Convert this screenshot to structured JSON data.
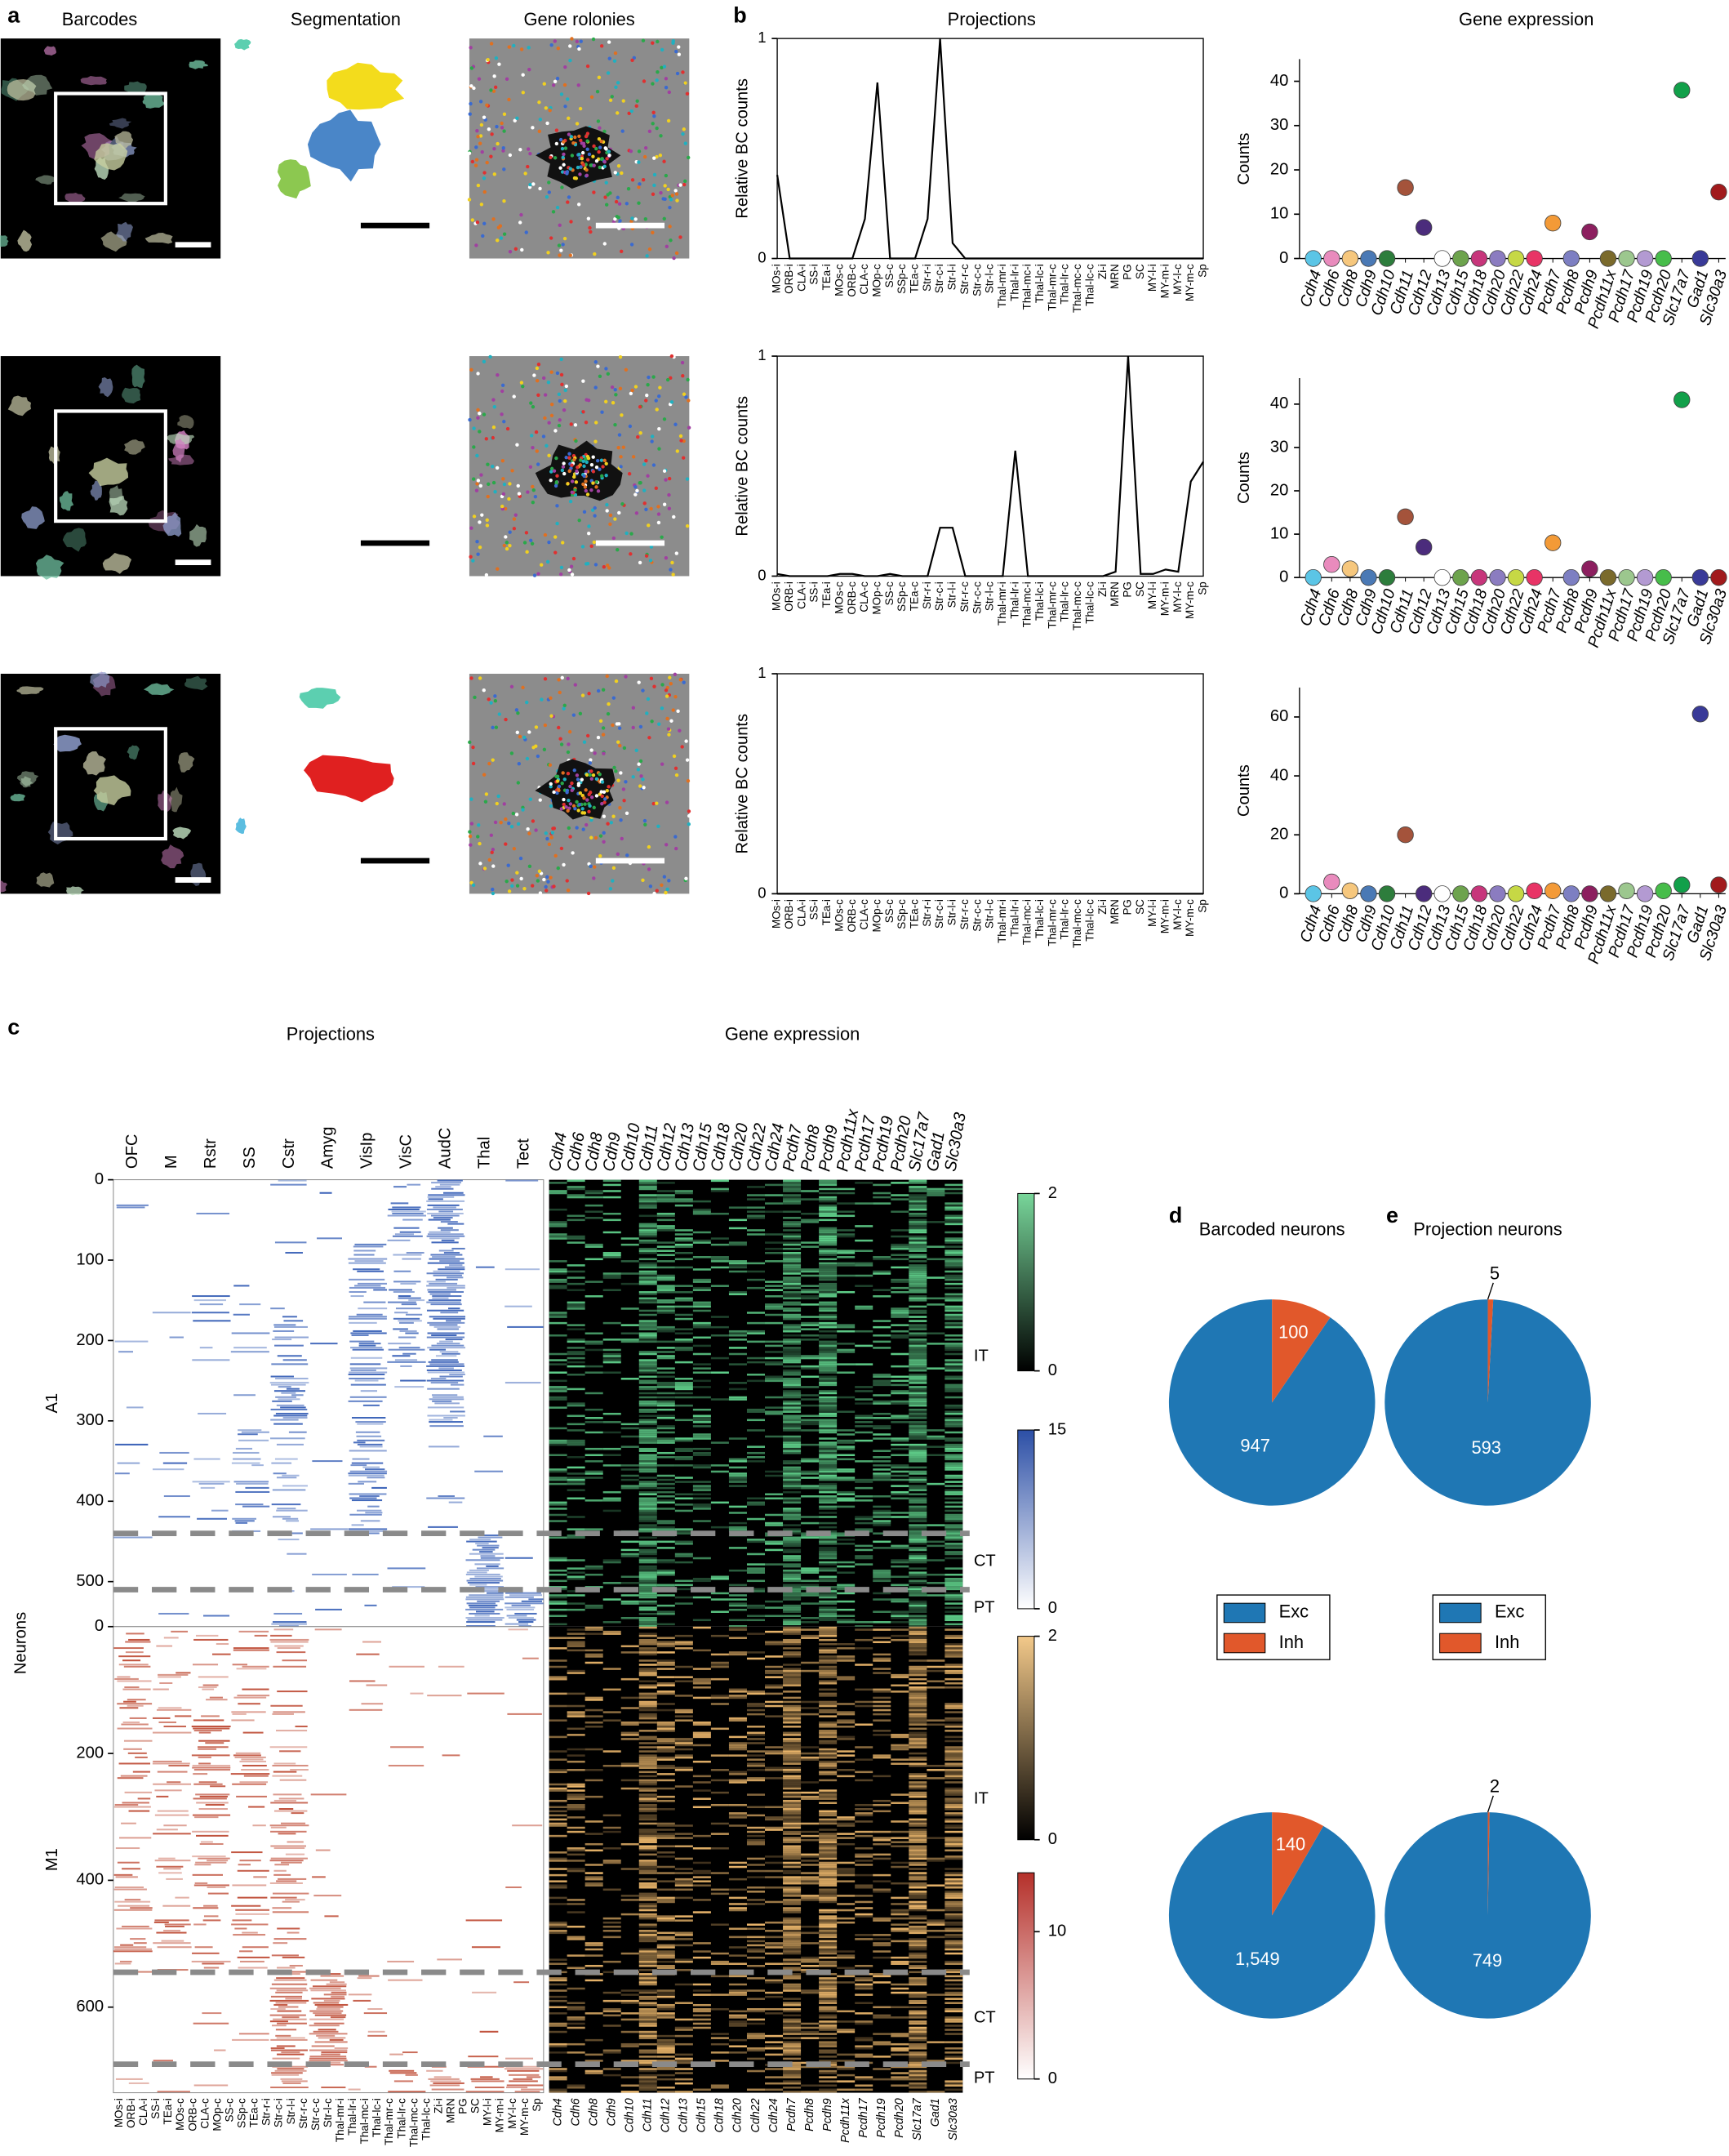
{
  "panel_labels": [
    "a",
    "b",
    "c",
    "d",
    "e"
  ],
  "panel_a": {
    "titles": [
      "Barcodes",
      "Segmentation",
      "Gene rolonies"
    ]
  },
  "projection_targets": [
    "MOs-i",
    "ORB-i",
    "CLA-i",
    "SS-i",
    "TEa-i",
    "MOs-c",
    "ORB-c",
    "CLA-c",
    "MOp-c",
    "SS-c",
    "SSp-c",
    "TEa-c",
    "Str-r-i",
    "Str-c-i",
    "Str-l-i",
    "Str-r-c",
    "Str-c-c",
    "Str-l-c",
    "Thal-mr-i",
    "Thal-lr-i",
    "Thal-mc-i",
    "Thal-lc-i",
    "Thal-mr-c",
    "Thal-lr-c",
    "Thal-mc-c",
    "Thal-lc-c",
    "Zi-i",
    "MRN",
    "PG",
    "SC",
    "MY-l-i",
    "MY-m-i",
    "MY-l-c",
    "MY-m-c",
    "Sp"
  ],
  "genes": [
    "Cdh4",
    "Cdh6",
    "Cdh8",
    "Cdh9",
    "Cdh10",
    "Cdh11",
    "Cdh12",
    "Cdh13",
    "Cdh15",
    "Cdh18",
    "Cdh20",
    "Cdh22",
    "Cdh24",
    "Pcdh7",
    "Pcdh8",
    "Pcdh9",
    "Pcdh11x",
    "Pcdh17",
    "Pcdh19",
    "Pcdh20",
    "Slc17a7",
    "Gad1",
    "Slc30a3"
  ],
  "gene_colors": [
    "#5bc5e6",
    "#e98bbd",
    "#f6c77d",
    "#4a79b5",
    "#2d7d3c",
    "#a4533b",
    "#4b2c7c",
    "#ffffff",
    "#6da34d",
    "#c7367b",
    "#8b7cc0",
    "#c6d845",
    "#e83466",
    "#f39a37",
    "#7d7fc2",
    "#8c1f5f",
    "#7a6a2c",
    "#9cc78e",
    "#b39ad2",
    "#47bd4a",
    "#12a04a",
    "#393a98",
    "#a11a1c"
  ],
  "panel_b": {
    "projections": {
      "type": "line",
      "title": "Projections",
      "y_label": "Relative BC counts",
      "ylim": [
        0,
        1
      ],
      "yticks": [
        0,
        1
      ],
      "color": "#000000",
      "rows": [
        [
          0.38,
          0,
          0,
          0,
          0,
          0,
          0,
          0.18,
          0.8,
          0,
          0,
          0,
          0.18,
          1,
          0.07,
          0,
          0,
          0,
          0,
          0,
          0,
          0,
          0,
          0,
          0,
          0,
          0,
          0,
          0,
          0,
          0,
          0,
          0,
          0,
          0
        ],
        [
          0.01,
          0,
          0,
          0,
          0,
          0.01,
          0.01,
          0,
          0,
          0.01,
          0,
          0,
          0,
          0.22,
          0.22,
          0,
          0,
          0,
          0,
          0.57,
          0,
          0,
          0,
          0,
          0,
          0,
          0,
          0.02,
          1,
          0.01,
          0.01,
          0.03,
          0.02,
          0.43,
          0.52
        ],
        [
          0,
          0,
          0,
          0,
          0,
          0,
          0,
          0,
          0,
          0,
          0,
          0,
          0,
          0,
          0,
          0,
          0,
          0,
          0,
          0,
          0,
          0,
          0,
          0,
          0,
          0,
          0,
          0,
          0,
          0,
          0,
          0,
          0,
          0,
          0
        ]
      ]
    },
    "gene_expression": {
      "type": "scatter",
      "title": "Gene expression",
      "y_label": "Counts",
      "rows": [
        {
          "ylim": [
            0,
            45
          ],
          "yticks": [
            0,
            10,
            20,
            30,
            40
          ],
          "values": [
            0,
            0,
            0,
            0,
            0,
            16,
            7,
            0,
            0,
            0,
            0,
            0,
            0,
            8,
            0,
            6,
            0,
            0,
            0,
            0,
            38,
            0,
            15
          ]
        },
        {
          "ylim": [
            0,
            46
          ],
          "yticks": [
            0,
            10,
            20,
            30,
            40
          ],
          "values": [
            0,
            3,
            2,
            0,
            0,
            14,
            7,
            0,
            0,
            0,
            0,
            0,
            0,
            8,
            0,
            2,
            0,
            0,
            0,
            0,
            41,
            0,
            0
          ]
        },
        {
          "ylim": [
            0,
            70
          ],
          "yticks": [
            0,
            20,
            40,
            60
          ],
          "values": [
            0,
            4,
            1,
            0,
            0,
            20,
            0,
            0,
            0,
            0,
            0,
            0,
            1,
            1,
            0,
            0,
            0,
            1,
            0,
            1,
            3,
            61,
            3
          ]
        }
      ]
    }
  },
  "panel_c": {
    "projections_title": "Projections",
    "gene_title": "Gene expression",
    "y_label": "Neurons",
    "column_groups": [
      "OFC",
      "M",
      "Rstr",
      "SS",
      "Cstr",
      "Amyg",
      "VisIp",
      "VisC",
      "AudC",
      "Thal",
      "Tect"
    ],
    "blocks": [
      {
        "name": "A1",
        "ylim": [
          0,
          556
        ],
        "yticks": [
          0,
          100,
          200,
          300,
          400,
          500
        ],
        "boundaries": [
          440,
          510
        ],
        "classes": [
          "IT",
          "CT",
          "PT"
        ]
      },
      {
        "name": "M1",
        "ylim": [
          0,
          735
        ],
        "yticks": [
          0,
          200,
          400,
          600
        ],
        "boundaries": [
          545,
          690
        ],
        "classes": [
          "IT",
          "CT",
          "PT"
        ]
      }
    ],
    "colorbars": [
      {
        "ylim": [
          0,
          2
        ],
        "yticks": [
          0,
          2
        ],
        "colors": [
          "#000000",
          "#78d69a"
        ]
      },
      {
        "ylim": [
          0,
          15
        ],
        "yticks": [
          0,
          15
        ],
        "colors": [
          "#ffffff",
          "#2c4fa6"
        ]
      },
      {
        "ylim": [
          0,
          2
        ],
        "yticks": [
          0,
          2
        ],
        "colors": [
          "#000000",
          "#f3c98a"
        ]
      },
      {
        "ylim": [
          0,
          14
        ],
        "yticks": [
          0,
          10
        ],
        "colors": [
          "#ffffff",
          "#b5302a"
        ]
      }
    ]
  },
  "pies": {
    "type": "pie",
    "series_names": [
      "Exc",
      "Inh"
    ],
    "colors": [
      "#1f77b4",
      "#e1582b"
    ],
    "panels": [
      {
        "title": "Barcoded neurons",
        "charts": [
          {
            "values": [
              947,
              100
            ]
          },
          {
            "values": [
              1549,
              140
            ],
            "value_labels": [
              "1,549",
              "140"
            ]
          }
        ]
      },
      {
        "title": "Projection neurons",
        "charts": [
          {
            "values": [
              593,
              5
            ]
          },
          {
            "values": [
              749,
              2
            ]
          }
        ]
      }
    ]
  }
}
